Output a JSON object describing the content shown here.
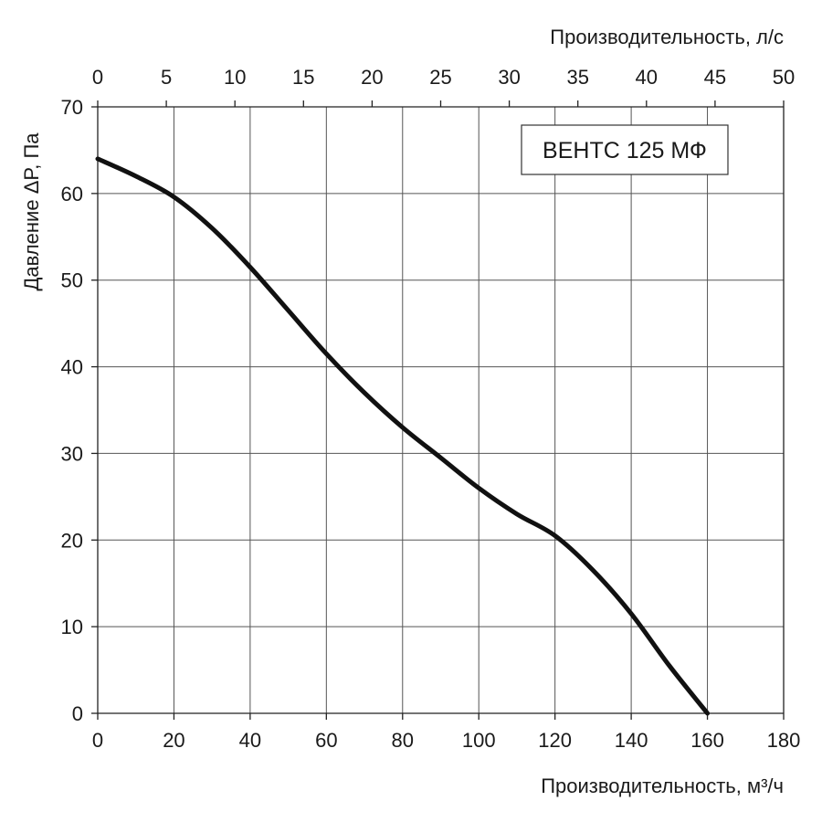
{
  "chart_data": {
    "type": "line",
    "top_axis": {
      "label": "Производительность, л/с",
      "ticks": [
        "0",
        "5",
        "10",
        "15",
        "20",
        "25",
        "30",
        "35",
        "40",
        "45",
        "50"
      ],
      "range": [
        0,
        50
      ]
    },
    "bottom_axis": {
      "label": "Производительность, м³/ч",
      "ticks": [
        "0",
        "20",
        "40",
        "60",
        "80",
        "100",
        "120",
        "140",
        "160",
        "180"
      ],
      "range": [
        0,
        180
      ]
    },
    "left_axis": {
      "label": "Давление ΔP, Па",
      "ticks": [
        "0",
        "10",
        "20",
        "30",
        "40",
        "50",
        "60",
        "70"
      ],
      "range": [
        0,
        70
      ]
    },
    "grid": true,
    "legend_position": "top-right",
    "series": [
      {
        "name": "ВЕНТС 125 МФ",
        "color": "#111111",
        "x": [
          0,
          10,
          20,
          30,
          40,
          50,
          60,
          70,
          80,
          90,
          100,
          110,
          120,
          130,
          140,
          150,
          160
        ],
        "y": [
          64,
          62,
          59.6,
          56,
          51.5,
          46.5,
          41.5,
          37,
          33,
          29.5,
          26,
          23,
          20.5,
          16.5,
          11.5,
          5.5,
          0
        ]
      }
    ]
  }
}
